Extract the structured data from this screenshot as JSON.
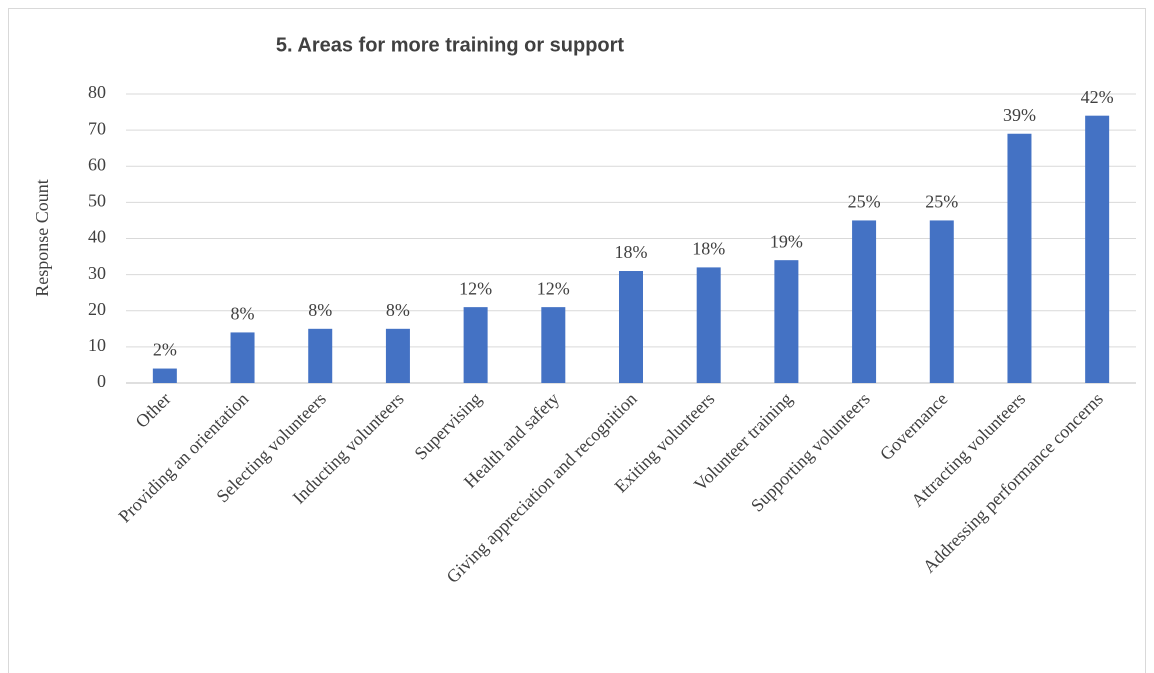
{
  "chart_data": {
    "type": "bar",
    "title": "5. Areas for more training or support",
    "y_label": "Response Count",
    "categories": [
      "Other",
      "Providing an orientation",
      "Selecting volunteers",
      "Inducting volunteers",
      "Supervising",
      "Health and safety",
      "Giving appreciation and recognition",
      "Exiting volunteers",
      "Volunteer training",
      "Supporting volunteers",
      "Governance",
      "Attracting volunteers",
      "Addressing performance concerns"
    ],
    "values": [
      4,
      14,
      15,
      15,
      21,
      21,
      31,
      32,
      34,
      45,
      45,
      69,
      74
    ],
    "data_labels": [
      "2%",
      "8%",
      "8%",
      "8%",
      "12%",
      "12%",
      "18%",
      "18%",
      "19%",
      "25%",
      "25%",
      "39%",
      "42%"
    ],
    "color": "#4472c4",
    "ylim": [
      0,
      80
    ],
    "yticks": [
      0,
      10,
      20,
      30,
      40,
      50,
      60,
      70,
      80
    ],
    "grid": true
  }
}
